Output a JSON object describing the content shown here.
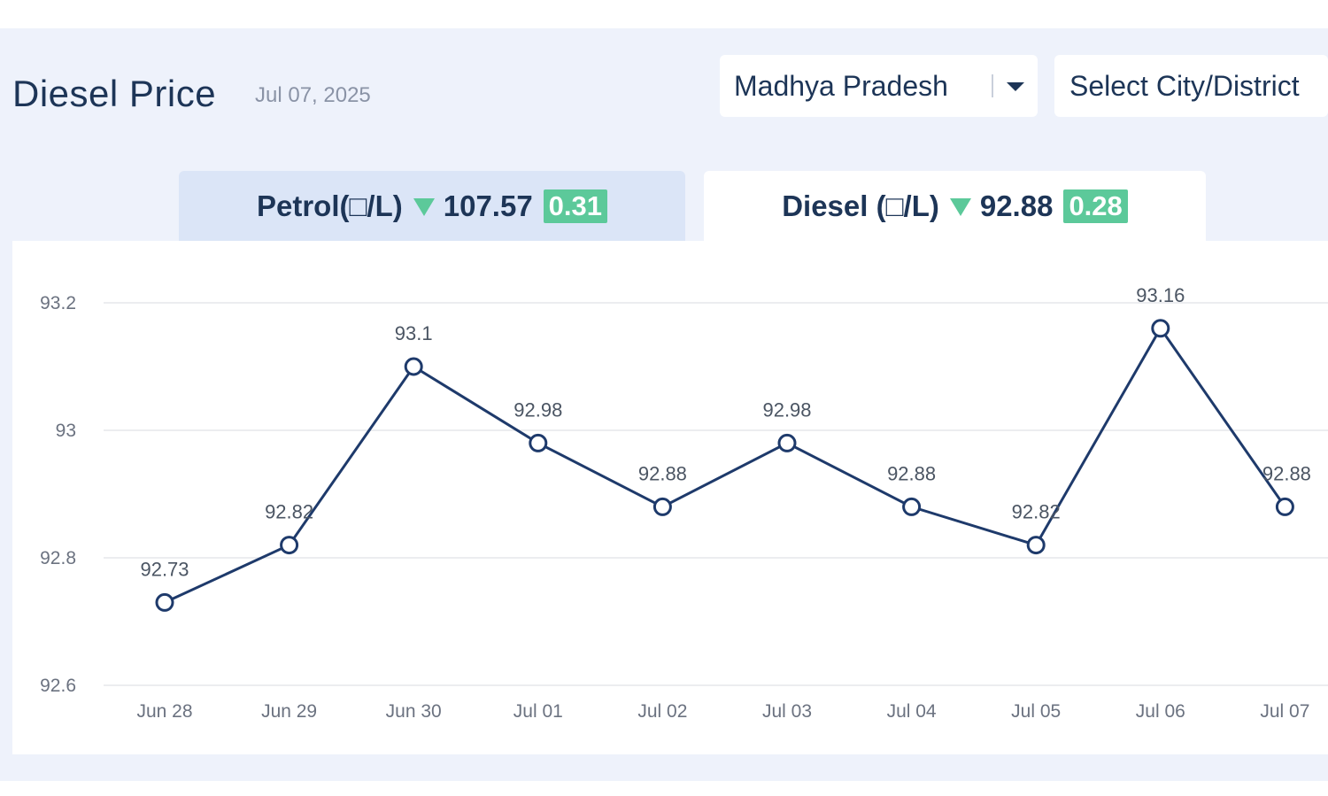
{
  "header": {
    "title": "Diesel Price",
    "date": "Jul 07, 2025"
  },
  "filters": {
    "state": "Madhya Pradesh",
    "city_placeholder": "Select City/District"
  },
  "tabs": [
    {
      "label": "Petrol(□/L)",
      "value": "107.57",
      "change": "0.31",
      "active": false
    },
    {
      "label": "Diesel (□/L)",
      "value": "92.88",
      "change": "0.28",
      "active": true
    }
  ],
  "colors": {
    "line": "#1e3a6b",
    "grid": "#e5e7eb",
    "badge": "#5cc99a"
  },
  "chart_data": {
    "type": "line",
    "categories": [
      "Jun 28",
      "Jun 29",
      "Jun 30",
      "Jul 01",
      "Jul 02",
      "Jul 03",
      "Jul 04",
      "Jul 05",
      "Jul 06",
      "Jul 07"
    ],
    "series": [
      {
        "values": [
          92.73,
          92.82,
          93.1,
          92.98,
          92.88,
          92.98,
          92.88,
          92.82,
          93.16,
          92.88
        ]
      }
    ],
    "y_ticks": [
      "93.2",
      "93",
      "92.8",
      "92.6"
    ],
    "ylim": [
      92.6,
      93.2
    ],
    "grid": true
  }
}
